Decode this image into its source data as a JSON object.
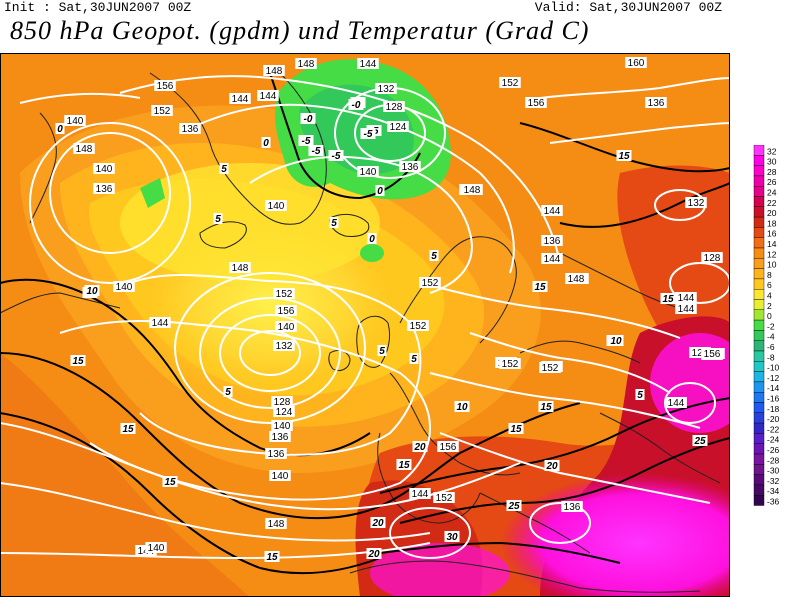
{
  "header": {
    "init": "Init : Sat,30JUN2007 00Z",
    "valid": "Valid: Sat,30JUN2007 00Z",
    "title": "850 hPa Geopot. (gpdm) und Temperatur (Grad C)"
  },
  "legend": {
    "values": [
      "32",
      "30",
      "28",
      "26",
      "24",
      "22",
      "20",
      "18",
      "16",
      "14",
      "12",
      "10",
      "8",
      "6",
      "4",
      "2",
      "0",
      "-2",
      "-4",
      "-6",
      "-8",
      "-10",
      "-12",
      "-14",
      "-16",
      "-18",
      "-20",
      "-22",
      "-24",
      "-26",
      "-28",
      "-30",
      "-32",
      "-34",
      "-36"
    ],
    "colors": [
      "#ff33ff",
      "#ff00e6",
      "#ff00cc",
      "#ee00aa",
      "#e6008c",
      "#d40050",
      "#c8102a",
      "#d22a14",
      "#e64a14",
      "#f06e14",
      "#f58c14",
      "#fa9e1e",
      "#ffb41e",
      "#ffc81e",
      "#ffe632",
      "#e6f032",
      "#a0e632",
      "#46dc46",
      "#32c85a",
      "#2db478",
      "#28c8a0",
      "#1ec8c8",
      "#1eb4e6",
      "#1e96f0",
      "#1e78f0",
      "#1e5af0",
      "#2840dc",
      "#3228c8",
      "#5a1ec8",
      "#6e14b4",
      "#7814a0",
      "#6e148c",
      "#5a0a78",
      "#460a64",
      "#320550"
    ]
  },
  "contours": {
    "geopotential_labels": [
      "156",
      "148",
      "152",
      "144",
      "140",
      "136",
      "148",
      "144",
      "140",
      "136",
      "132",
      "128",
      "124",
      "140",
      "136",
      "140",
      "148",
      "144",
      "152",
      "156",
      "160",
      "136",
      "132",
      "128",
      "124",
      "136",
      "140",
      "144",
      "148",
      "152",
      "156",
      "140",
      "132",
      "128",
      "124",
      "140",
      "136",
      "136",
      "140",
      "148",
      "144",
      "152",
      "152",
      "148",
      "144",
      "136",
      "140",
      "144",
      "148",
      "144",
      "152",
      "156",
      "156",
      "152",
      "144",
      "136",
      "140",
      "148",
      "144",
      "144",
      "148",
      "152",
      "156",
      "152",
      "144"
    ],
    "temperature_labels": [
      "0",
      "-5",
      "-0",
      "-5",
      "-5",
      "-5",
      "-0",
      "-5",
      "0",
      "5",
      "5",
      "5",
      "0",
      "5",
      "10",
      "15",
      "15",
      "15",
      "15",
      "5",
      "5",
      "0",
      "5",
      "10",
      "10",
      "15",
      "15",
      "15",
      "10",
      "15",
      "15",
      "20",
      "20",
      "20",
      "25",
      "25",
      "30",
      "20",
      "15",
      "5",
      "-5",
      "10"
    ]
  }
}
